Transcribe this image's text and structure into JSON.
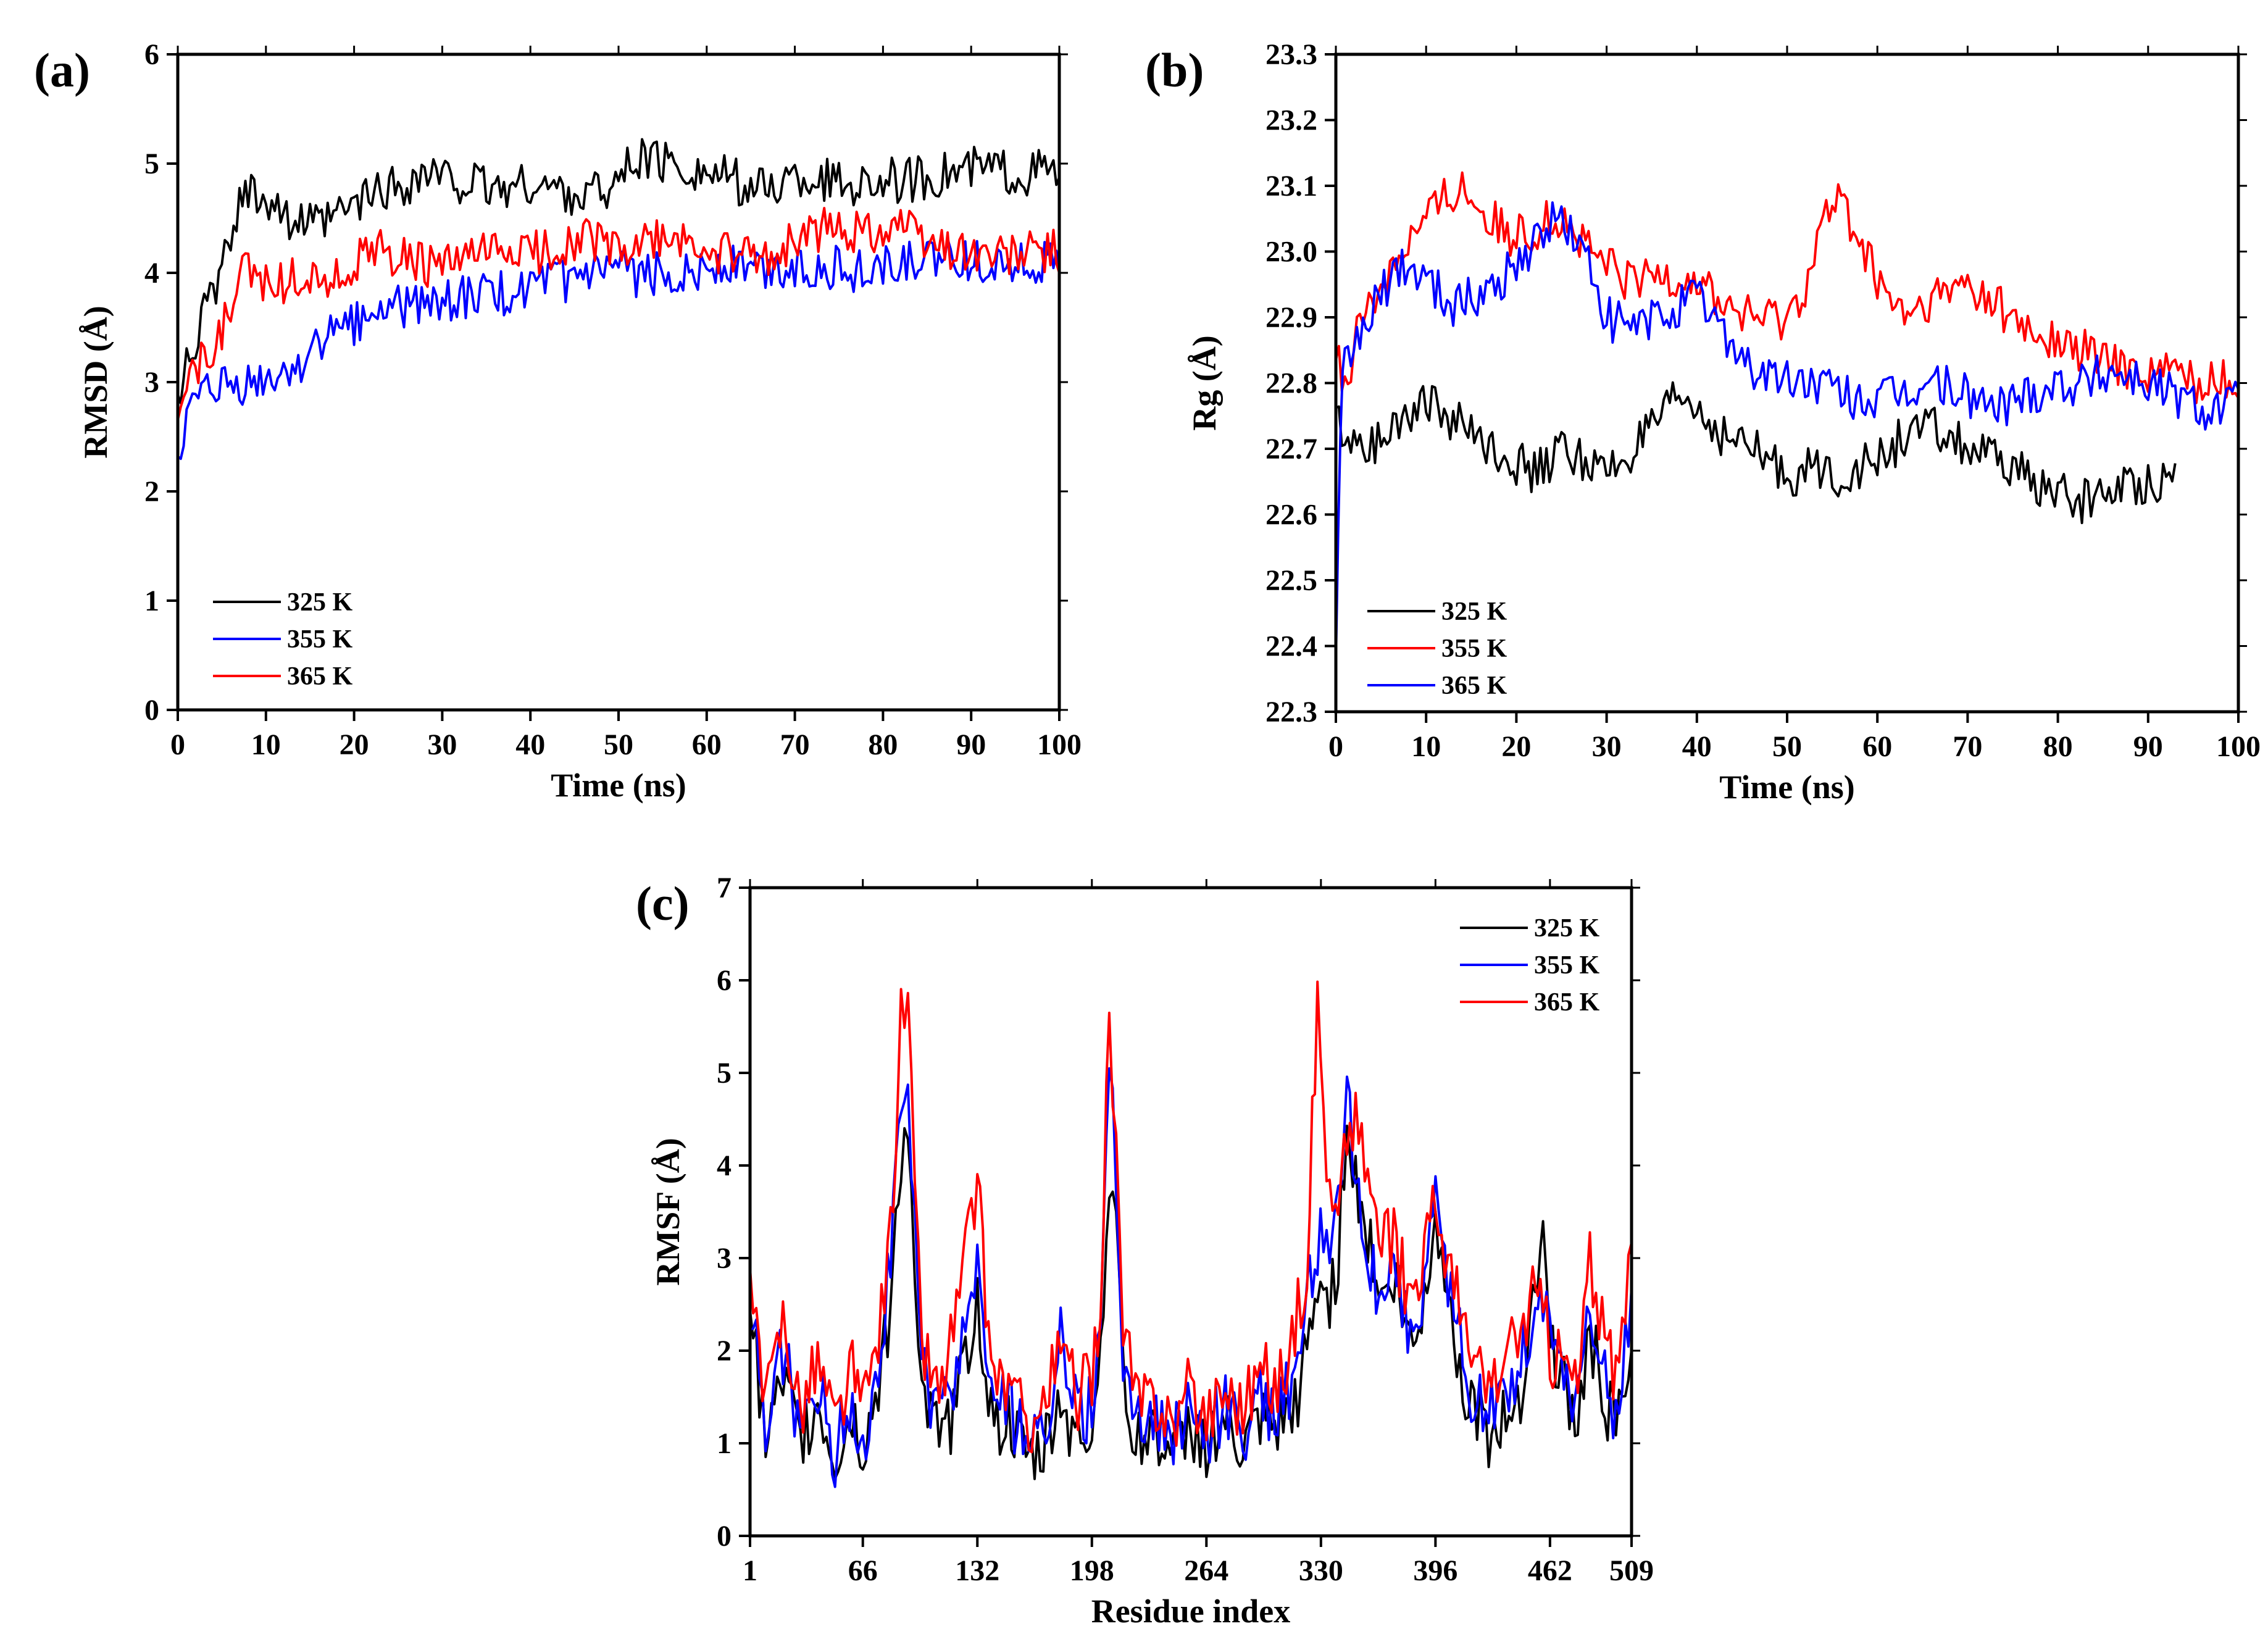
{
  "chart_data": [
    {
      "id": "a",
      "type": "line",
      "panel_label": "(a)",
      "xlabel": "Time (ns)",
      "ylabel": "RMSD (Å)",
      "xlim": [
        0,
        100
      ],
      "ylim": [
        0,
        6
      ],
      "xticks": [
        0,
        10,
        20,
        30,
        40,
        50,
        60,
        70,
        80,
        90,
        100
      ],
      "yticks": [
        0,
        1,
        2,
        3,
        4,
        5,
        6
      ],
      "legend_position": "bottom-left",
      "series": [
        {
          "name": "325 K",
          "color": "#000000",
          "x": [
            0,
            1,
            2,
            3,
            4,
            5,
            6,
            7,
            8,
            10,
            12,
            14,
            16,
            18,
            20,
            23,
            26,
            28,
            30,
            33,
            36,
            40,
            43,
            46,
            50,
            52,
            55,
            58,
            60,
            63,
            66,
            70,
            73,
            76,
            80,
            83,
            86,
            90,
            93,
            96,
            98,
            100
          ],
          "y": [
            2.7,
            3.3,
            3.4,
            3.6,
            3.8,
            4.0,
            4.3,
            4.6,
            4.8,
            4.7,
            4.55,
            4.45,
            4.4,
            4.5,
            4.6,
            4.75,
            4.8,
            4.9,
            4.85,
            4.8,
            4.75,
            4.8,
            4.75,
            4.7,
            4.85,
            5.05,
            5.0,
            4.95,
            4.9,
            4.85,
            4.75,
            4.85,
            4.85,
            4.8,
            4.85,
            4.85,
            4.9,
            4.95,
            4.95,
            4.9,
            4.95,
            4.9
          ]
        },
        {
          "name": "355 K",
          "color": "#0000ff",
          "x": [
            0,
            1,
            2,
            3,
            4,
            5,
            6,
            8,
            10,
            12,
            14,
            16,
            18,
            20,
            23,
            26,
            30,
            34,
            38,
            40,
            43,
            46,
            50,
            53,
            56,
            60,
            63,
            66,
            70,
            73,
            76,
            80,
            83,
            86,
            90,
            93,
            96,
            100
          ],
          "y": [
            2.3,
            2.6,
            2.75,
            2.85,
            2.9,
            2.95,
            2.92,
            2.95,
            3.0,
            3.05,
            3.2,
            3.35,
            3.45,
            3.55,
            3.65,
            3.7,
            3.75,
            3.78,
            3.82,
            3.85,
            3.9,
            3.95,
            4.0,
            3.98,
            4.0,
            4.05,
            4.08,
            4.02,
            4.05,
            4.08,
            4.02,
            4.05,
            4.1,
            4.1,
            4.12,
            4.1,
            4.1,
            4.1
          ]
        },
        {
          "name": "365 K",
          "color": "#ff0000",
          "x": [
            0,
            1,
            2,
            3,
            4,
            5,
            6,
            7,
            8,
            10,
            12,
            14,
            16,
            18,
            20,
            23,
            26,
            30,
            34,
            38,
            42,
            46,
            50,
            53,
            56,
            60,
            63,
            66,
            70,
            73,
            76,
            80,
            82,
            84,
            87,
            90,
            93,
            96,
            100
          ],
          "y": [
            2.8,
            3.05,
            3.1,
            3.2,
            3.3,
            3.45,
            3.7,
            3.95,
            4.0,
            3.95,
            3.9,
            4.0,
            3.95,
            3.95,
            4.1,
            4.2,
            4.1,
            4.05,
            4.15,
            4.2,
            4.2,
            4.35,
            4.2,
            4.25,
            4.3,
            4.2,
            4.15,
            4.1,
            4.3,
            4.4,
            4.4,
            4.4,
            4.5,
            4.3,
            4.25,
            4.2,
            4.15,
            4.18,
            4.2
          ]
        }
      ]
    },
    {
      "id": "b",
      "type": "line",
      "panel_label": "(b)",
      "xlabel": "Time (ns)",
      "ylabel": "Rg (Å)",
      "xlim": [
        0,
        100
      ],
      "ylim": [
        22.3,
        23.3
      ],
      "xticks": [
        0,
        10,
        20,
        30,
        40,
        50,
        60,
        70,
        80,
        90,
        100
      ],
      "yticks": [
        "22.3",
        "22.4",
        "22.5",
        "22.6",
        "22.7",
        "22.8",
        "22.9",
        "23.0",
        "23.1",
        "23.2",
        "23.3"
      ],
      "legend_position": "bottom-left",
      "series": [
        {
          "name": "325 K",
          "color": "#000000",
          "x": [
            0,
            1,
            3,
            5,
            8,
            10,
            13,
            16,
            20,
            22,
            25,
            28,
            30,
            33,
            36,
            38,
            40,
            43,
            46,
            50,
            53,
            56,
            60,
            63,
            66,
            70,
            73,
            76,
            80,
            83,
            86,
            90,
            93
          ],
          "y": [
            22.75,
            22.72,
            22.7,
            22.72,
            22.76,
            22.77,
            22.74,
            22.72,
            22.68,
            22.66,
            22.7,
            22.68,
            22.66,
            22.7,
            22.74,
            22.78,
            22.76,
            22.72,
            22.7,
            22.66,
            22.67,
            22.66,
            22.68,
            22.72,
            22.73,
            22.7,
            22.68,
            22.66,
            22.63,
            22.62,
            22.64,
            22.65,
            22.66
          ]
        },
        {
          "name": "355 K",
          "color": "#ff0000",
          "x": [
            0,
            1,
            3,
            5,
            7,
            10,
            12,
            14,
            17,
            20,
            23,
            25,
            28,
            30,
            33,
            36,
            40,
            43,
            46,
            50,
            52,
            54,
            56,
            58,
            60,
            63,
            66,
            70,
            73,
            76,
            80,
            83,
            86,
            90,
            93,
            96,
            100
          ],
          "y": [
            22.85,
            22.8,
            22.9,
            22.95,
            23.0,
            23.05,
            23.08,
            23.1,
            23.05,
            23.02,
            23.04,
            23.05,
            23.0,
            22.98,
            22.95,
            22.97,
            22.96,
            22.92,
            22.9,
            22.9,
            22.95,
            23.05,
            23.08,
            23.02,
            22.95,
            22.9,
            22.92,
            22.95,
            22.92,
            22.88,
            22.86,
            22.85,
            22.83,
            22.82,
            22.82,
            22.8,
            22.8
          ]
        },
        {
          "name": "365 K",
          "color": "#0000ff",
          "x": [
            0,
            0.5,
            1,
            3,
            5,
            7,
            10,
            13,
            16,
            20,
            23,
            25,
            28,
            30,
            33,
            36,
            40,
            43,
            46,
            50,
            53,
            56,
            60,
            63,
            66,
            70,
            73,
            76,
            80,
            83,
            86,
            90,
            93,
            96,
            100
          ],
          "y": [
            22.35,
            22.75,
            22.82,
            22.88,
            22.93,
            22.98,
            22.96,
            22.92,
            22.93,
            22.98,
            23.03,
            23.05,
            22.98,
            22.9,
            22.88,
            22.9,
            22.93,
            22.88,
            22.82,
            22.8,
            22.8,
            22.78,
            22.77,
            22.78,
            22.8,
            22.78,
            22.76,
            22.78,
            22.8,
            22.8,
            22.82,
            22.8,
            22.78,
            22.76,
            22.77
          ]
        }
      ]
    },
    {
      "id": "c",
      "type": "line",
      "panel_label": "(c)",
      "xlabel": "Residue index",
      "ylabel": "RMSF (Å)",
      "xlim": [
        1,
        509
      ],
      "ylim": [
        0,
        7
      ],
      "xticks": [
        1,
        66,
        132,
        198,
        264,
        330,
        396,
        462,
        509
      ],
      "yticks": [
        0,
        1,
        2,
        3,
        4,
        5,
        6,
        7
      ],
      "legend_position": "top-right",
      "series": [
        {
          "name": "325 K",
          "color": "#000000",
          "x": [
            1,
            10,
            20,
            30,
            40,
            50,
            60,
            66,
            75,
            82,
            88,
            92,
            96,
            100,
            110,
            120,
            132,
            140,
            150,
            160,
            170,
            180,
            190,
            198,
            203,
            208,
            212,
            216,
            225,
            235,
            245,
            255,
            264,
            275,
            285,
            295,
            305,
            315,
            322,
            328,
            335,
            340,
            345,
            350,
            357,
            365,
            372,
            380,
            388,
            396,
            405,
            415,
            425,
            435,
            445,
            452,
            458,
            462,
            470,
            478,
            485,
            492,
            500,
            509
          ],
          "y": [
            2.5,
            1.0,
            1.6,
            1.0,
            1.4,
            0.8,
            1.3,
            0.9,
            1.6,
            2.5,
            4.2,
            4.4,
            3.0,
            1.5,
            1.0,
            1.4,
            2.6,
            1.3,
            1.2,
            0.8,
            0.9,
            1.5,
            1.0,
            1.2,
            2.0,
            4.0,
            3.5,
            1.6,
            1.0,
            1.2,
            0.8,
            1.2,
            1.0,
            1.2,
            0.9,
            1.2,
            1.1,
            1.4,
            2.0,
            2.7,
            2.6,
            3.0,
            4.6,
            3.8,
            3.3,
            2.5,
            2.8,
            2.1,
            2.3,
            3.6,
            2.3,
            1.5,
            1.1,
            1.2,
            1.6,
            2.6,
            3.2,
            2.2,
            1.6,
            1.2,
            2.2,
            1.6,
            1.1,
            2.0
          ]
        },
        {
          "name": "355 K",
          "color": "#0000ff",
          "x": [
            1,
            10,
            20,
            30,
            40,
            50,
            60,
            66,
            75,
            82,
            88,
            92,
            96,
            100,
            110,
            120,
            132,
            140,
            150,
            160,
            170,
            180,
            190,
            198,
            203,
            208,
            212,
            216,
            225,
            235,
            245,
            255,
            264,
            275,
            285,
            295,
            305,
            315,
            322,
            328,
            335,
            340,
            345,
            350,
            357,
            365,
            372,
            380,
            388,
            396,
            405,
            415,
            425,
            435,
            445,
            452,
            458,
            462,
            470,
            478,
            485,
            492,
            500,
            509
          ],
          "y": [
            2.6,
            1.2,
            2.0,
            1.1,
            1.6,
            0.9,
            1.5,
            1.0,
            1.9,
            3.0,
            4.6,
            4.9,
            3.2,
            1.8,
            1.2,
            1.8,
            3.0,
            1.5,
            1.4,
            1.0,
            1.1,
            2.2,
            1.2,
            1.4,
            2.3,
            5.2,
            4.0,
            1.9,
            1.2,
            1.3,
            1.0,
            1.4,
            1.1,
            1.4,
            1.1,
            1.5,
            1.3,
            1.8,
            2.5,
            3.2,
            3.0,
            3.5,
            4.8,
            3.9,
            3.0,
            2.6,
            3.0,
            2.2,
            2.5,
            3.6,
            2.6,
            1.6,
            1.3,
            1.5,
            1.9,
            2.4,
            2.6,
            2.2,
            1.8,
            1.4,
            2.6,
            1.8,
            1.3,
            2.6
          ]
        },
        {
          "name": "365 K",
          "color": "#ff0000",
          "x": [
            1,
            10,
            20,
            30,
            40,
            50,
            60,
            66,
            75,
            82,
            88,
            92,
            96,
            100,
            110,
            120,
            132,
            140,
            150,
            160,
            170,
            180,
            190,
            198,
            203,
            208,
            212,
            216,
            225,
            235,
            245,
            255,
            264,
            275,
            285,
            295,
            305,
            315,
            322,
            328,
            335,
            340,
            345,
            350,
            357,
            365,
            372,
            380,
            388,
            396,
            405,
            415,
            425,
            435,
            445,
            452,
            458,
            462,
            470,
            478,
            485,
            492,
            500,
            509
          ],
          "y": [
            2.8,
            1.3,
            2.4,
            1.4,
            1.9,
            1.2,
            1.8,
            1.3,
            2.2,
            3.2,
            5.6,
            5.8,
            3.6,
            2.1,
            1.5,
            2.4,
            3.8,
            1.8,
            1.6,
            1.2,
            1.4,
            2.0,
            1.5,
            1.7,
            2.6,
            5.6,
            4.2,
            2.1,
            1.4,
            1.5,
            1.2,
            1.6,
            1.3,
            1.6,
            1.4,
            1.8,
            1.6,
            2.2,
            3.0,
            5.8,
            3.6,
            3.4,
            4.4,
            4.5,
            3.9,
            3.1,
            3.2,
            2.6,
            3.0,
            3.6,
            2.8,
            2.0,
            1.6,
            1.8,
            2.2,
            2.6,
            2.4,
            2.0,
            1.9,
            1.6,
            3.0,
            2.2,
            1.6,
            3.0
          ]
        }
      ]
    }
  ]
}
